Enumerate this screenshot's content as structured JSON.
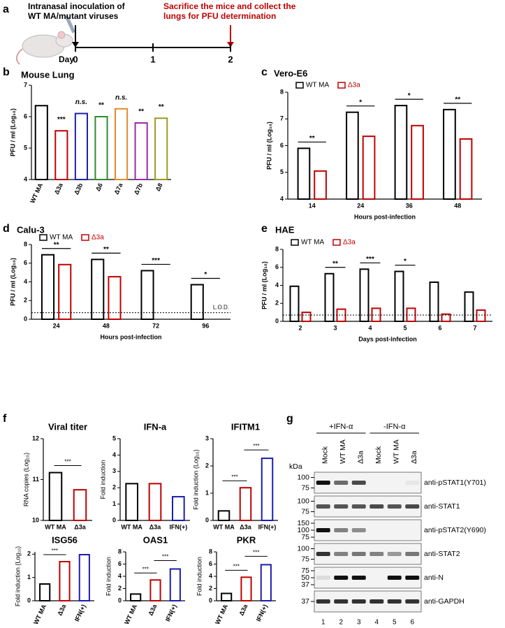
{
  "panel_labels": [
    "a",
    "b",
    "c",
    "d",
    "e",
    "f",
    "g"
  ],
  "timeline": {
    "inoculation_text": [
      "Intranasal inoculation of",
      "WT MA/mutant viruses"
    ],
    "sacrifice_text": [
      "Sacrifice the mice and collect the",
      "lungs for PFU determination"
    ],
    "axis_label": "Day",
    "day_ticks": [
      0,
      1,
      2
    ]
  },
  "chart_data": [
    {
      "type": "bar",
      "title": "Mouse Lung",
      "ylabel": "PFU / ml (Log₁₀)",
      "categories": [
        "WT MA",
        "Δ3a",
        "Δ3b",
        "Δ6",
        "Δ7a",
        "Δ7b",
        "Δ8"
      ],
      "values": [
        6.35,
        5.55,
        6.1,
        6.0,
        6.25,
        5.8,
        5.95
      ],
      "colors": [
        "#000000",
        "#c00000",
        "#1f1fa8",
        "#2e8b2e",
        "#e08a2a",
        "#9b2aa8",
        "#9a9a20"
      ],
      "ylim": [
        4,
        7
      ],
      "yticks": [
        4,
        5,
        6,
        7
      ],
      "significance": [
        null,
        "***",
        "n.s.",
        "**",
        "n.s.",
        "**",
        "**"
      ],
      "rotate_labels": true
    },
    {
      "type": "grouped-bar",
      "title": "Vero-E6",
      "xlabel": "Hours post-infection",
      "ylabel": "PFU / ml (Log₁₀)",
      "categories": [
        "14",
        "24",
        "36",
        "48"
      ],
      "series": [
        {
          "name": "WT MA",
          "color": "#000000",
          "values": [
            5.9,
            7.25,
            7.5,
            7.35
          ]
        },
        {
          "name": "Δ3a",
          "color": "#c00000",
          "values": [
            5.05,
            6.35,
            6.75,
            6.25
          ]
        }
      ],
      "ylim": [
        4,
        8
      ],
      "yticks": [
        4,
        5,
        6,
        7,
        8
      ],
      "significance": [
        "**",
        "*",
        "*",
        "**"
      ]
    },
    {
      "type": "grouped-bar",
      "title": "Calu-3",
      "xlabel": "Hours post-infection",
      "ylabel": "PFU / ml (Log₁₀)",
      "categories": [
        "24",
        "48",
        "72",
        "96"
      ],
      "series": [
        {
          "name": "WT MA",
          "color": "#000000",
          "values": [
            6.9,
            6.4,
            5.2,
            3.7
          ]
        },
        {
          "name": "Δ3a",
          "color": "#c00000",
          "values": [
            5.85,
            4.55,
            0,
            0
          ]
        }
      ],
      "ylim": [
        0,
        8
      ],
      "yticks": [
        0,
        2,
        4,
        6,
        8
      ],
      "significance": [
        "**",
        "**",
        "***",
        "*"
      ],
      "lod": 0.7,
      "lod_label": "L.O.D."
    },
    {
      "type": "grouped-bar",
      "title": "HAE",
      "xlabel": "Days post-infection",
      "ylabel": "PFU / ml (Log₁₀)",
      "categories": [
        "2",
        "3",
        "4",
        "5",
        "6",
        "7"
      ],
      "series": [
        {
          "name": "WT MA",
          "color": "#000000",
          "values": [
            3.9,
            5.3,
            5.8,
            5.55,
            4.35,
            3.25
          ]
        },
        {
          "name": "Δ3a",
          "color": "#c00000",
          "values": [
            1.0,
            1.35,
            1.45,
            1.45,
            0.8,
            1.25
          ]
        }
      ],
      "ylim": [
        0,
        8
      ],
      "yticks": [
        0,
        2,
        4,
        6,
        8
      ],
      "significance": [
        null,
        "**",
        "***",
        "*",
        null,
        null
      ],
      "lod": 0.7
    },
    {
      "type": "bar",
      "title": "Viral titer",
      "ylabel": "RNA copies (Log₁₀)",
      "categories": [
        "WT MA",
        "Δ3a"
      ],
      "values": [
        11.17,
        10.75
      ],
      "colors": [
        "#000000",
        "#c00000"
      ],
      "ylim": [
        10,
        12
      ],
      "yticks": [
        10,
        11,
        12
      ],
      "comparisons": [
        "***"
      ]
    },
    {
      "type": "bar",
      "title": "IFN-a",
      "ylabel": "Fold induction",
      "categories": [
        "WT MA",
        "Δ3a",
        "IFN(+)"
      ],
      "values": [
        2.25,
        2.25,
        1.45
      ],
      "colors": [
        "#000000",
        "#c00000",
        "#1c1cb0"
      ],
      "ylim": [
        0,
        5
      ],
      "yticks": [
        0,
        1,
        2,
        3,
        4,
        5
      ]
    },
    {
      "type": "bar",
      "title": "IFITM1",
      "ylabel": "Fold induction (Log₁₀)",
      "categories": [
        "WT MA",
        "Δ3a",
        "IFN(+)"
      ],
      "values": [
        0.35,
        1.2,
        2.28
      ],
      "colors": [
        "#000000",
        "#c00000",
        "#1c1cb0"
      ],
      "ylim": [
        0,
        3
      ],
      "yticks": [
        0,
        1,
        2,
        3
      ],
      "comparisons": [
        "***",
        "***"
      ]
    },
    {
      "type": "bar",
      "title": "ISG56",
      "ylabel": "Fold induction (Log₁₀)",
      "categories": [
        "WT MA",
        "Δ3a",
        "IFN(+)"
      ],
      "values": [
        0.72,
        1.68,
        1.98
      ],
      "colors": [
        "#000000",
        "#c00000",
        "#1c1cb0"
      ],
      "ylim": [
        0,
        2.1
      ],
      "yticks": [
        0,
        1,
        2
      ],
      "comparisons": [
        "***"
      ],
      "rotate_labels": true
    },
    {
      "type": "bar",
      "title": "OAS1",
      "ylabel": "Fold induction",
      "categories": [
        "WT MA",
        "Δ3a",
        "IFN(+)"
      ],
      "values": [
        1.1,
        3.4,
        5.2
      ],
      "colors": [
        "#000000",
        "#c00000",
        "#1c1cb0"
      ],
      "ylim": [
        0,
        8
      ],
      "yticks": [
        0,
        2,
        4,
        6,
        8
      ],
      "comparisons": [
        "***",
        "***"
      ],
      "rotate_labels": true
    },
    {
      "type": "bar",
      "title": "PKR",
      "ylabel": "Fold induction",
      "categories": [
        "WT MA",
        "Δ3a",
        "IFN(+)"
      ],
      "values": [
        1.2,
        3.85,
        5.9
      ],
      "colors": [
        "#000000",
        "#c00000",
        "#1c1cb0"
      ],
      "ylim": [
        0,
        8
      ],
      "yticks": [
        0,
        2,
        4,
        6,
        8
      ],
      "comparisons": [
        "***",
        "***"
      ],
      "rotate_labels": true
    }
  ],
  "blot": {
    "groups": [
      "+IFN-α",
      "-IFN-α"
    ],
    "lanes": [
      "Mock",
      "WT MA",
      "Δ3a",
      "Mock",
      "WT MA",
      "Δ3a"
    ],
    "unit": "kDa",
    "lane_numbers": [
      1,
      2,
      3,
      4,
      5,
      6
    ],
    "rows": [
      {
        "label": "anti-pSTAT1(Y701)",
        "markers": [
          100,
          75
        ]
      },
      {
        "label": "anti-STAT1",
        "markers": [
          100,
          75
        ]
      },
      {
        "label": "anti-pSTAT2(Y690)",
        "markers": [
          150,
          100,
          75
        ]
      },
      {
        "label": "anti-STAT2",
        "markers": [
          100,
          75
        ]
      },
      {
        "label": "anti-N",
        "markers": [
          75,
          50,
          37
        ]
      },
      {
        "label": "anti-GAPDH",
        "markers": [
          37
        ]
      }
    ]
  }
}
